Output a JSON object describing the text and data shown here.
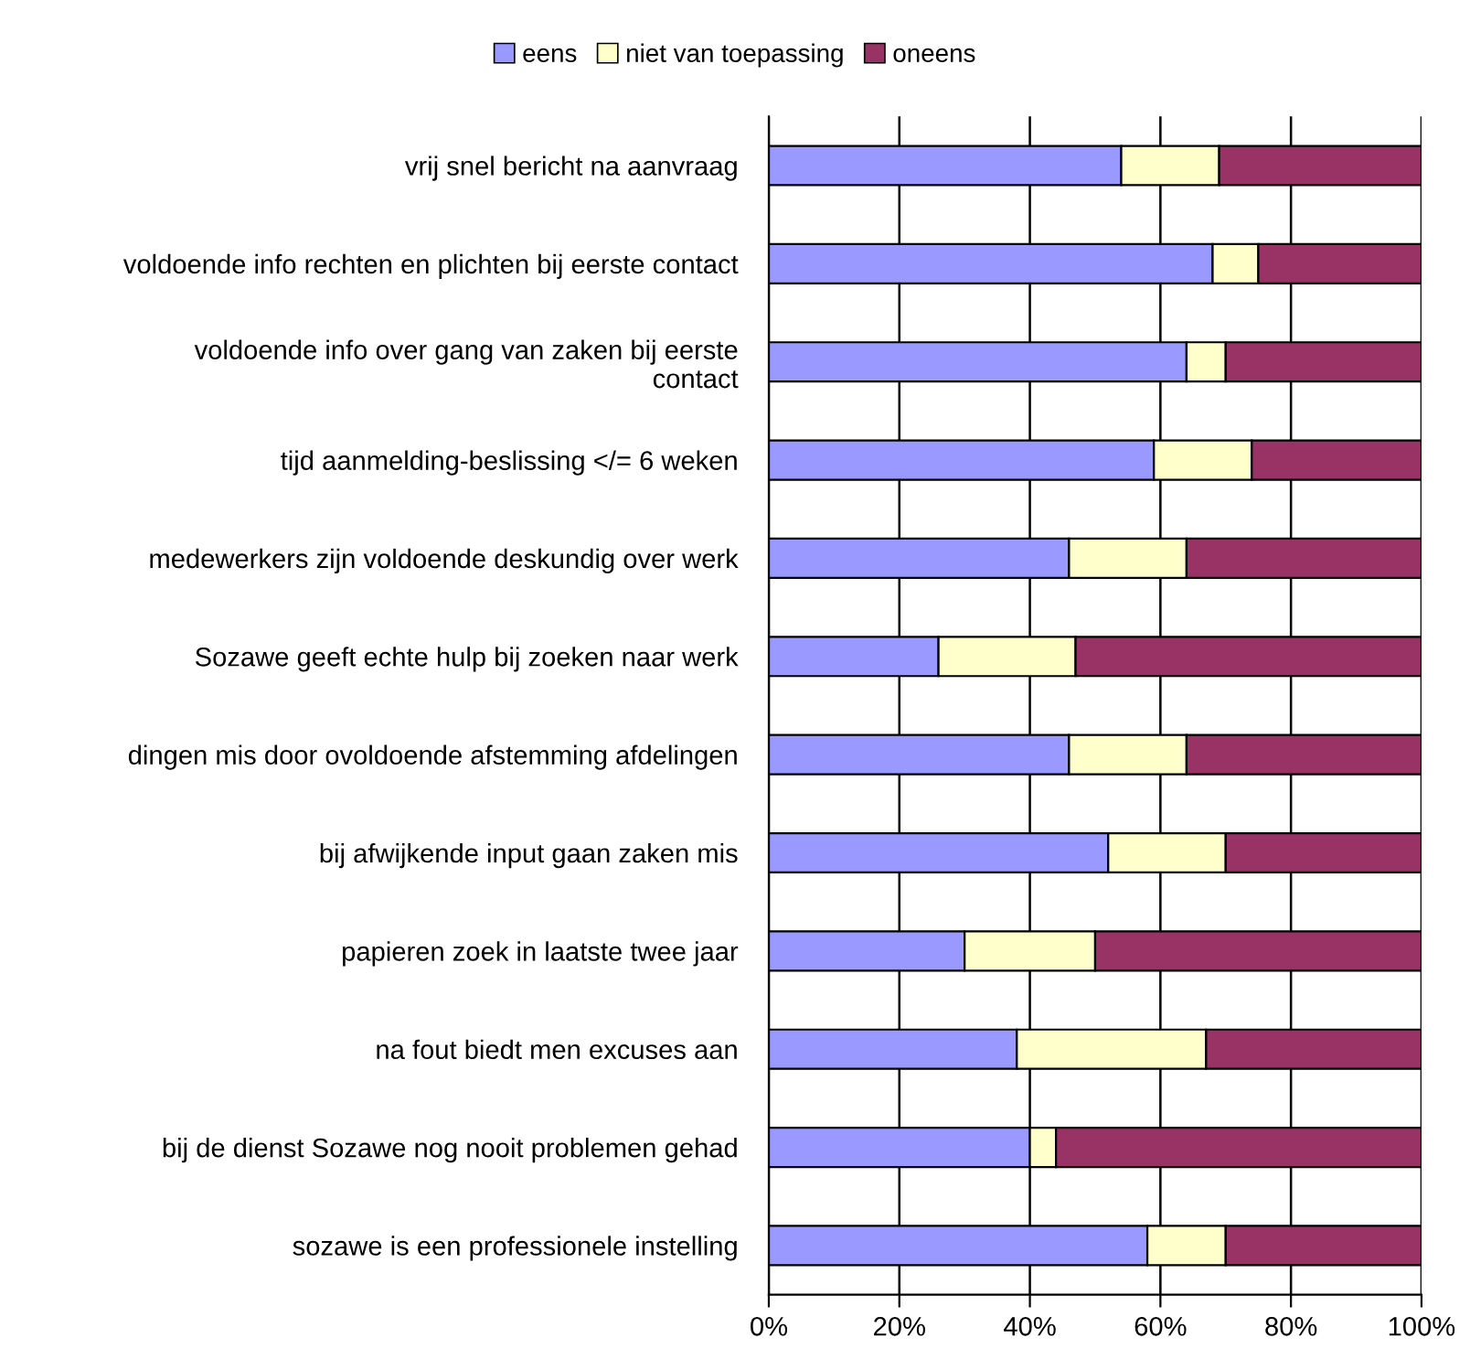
{
  "chart_data": {
    "type": "bar",
    "orientation": "horizontal",
    "stacked": true,
    "categories": [
      "vrij snel bericht na aanvraag",
      "voldoende info rechten en plichten bij eerste contact",
      "voldoende info over gang van zaken bij eerste\ncontact",
      "tijd aanmelding-beslissing </= 6 weken",
      "medewerkers zijn voldoende deskundig over werk",
      "Sozawe geeft echte hulp bij zoeken naar werk",
      "dingen mis door ovoldoende afstemming afdelingen",
      "bij afwijkende input gaan zaken mis",
      "papieren zoek in laatste twee jaar",
      "na fout biedt men excuses aan",
      "bij de dienst Sozawe nog nooit problemen gehad",
      "sozawe is een professionele instelling"
    ],
    "series": [
      {
        "name": "eens",
        "color": "#9999ff",
        "values": [
          54,
          68,
          64,
          59,
          46,
          26,
          46,
          52,
          30,
          38,
          40,
          58
        ]
      },
      {
        "name": "niet van toepassing",
        "color": "#ffffcc",
        "values": [
          15,
          7,
          6,
          15,
          18,
          21,
          18,
          18,
          20,
          29,
          4,
          12
        ]
      },
      {
        "name": "oneens",
        "color": "#993366",
        "values": [
          31,
          25,
          30,
          26,
          36,
          53,
          36,
          30,
          50,
          33,
          56,
          30
        ]
      }
    ],
    "xlim": [
      0,
      100
    ],
    "xticks": [
      {
        "value": 0,
        "label": "0%"
      },
      {
        "value": 20,
        "label": "20%"
      },
      {
        "value": 40,
        "label": "40%"
      },
      {
        "value": 60,
        "label": "60%"
      },
      {
        "value": 80,
        "label": "80%"
      },
      {
        "value": 100,
        "label": "100%"
      }
    ],
    "grid": "x",
    "legend": "top"
  }
}
